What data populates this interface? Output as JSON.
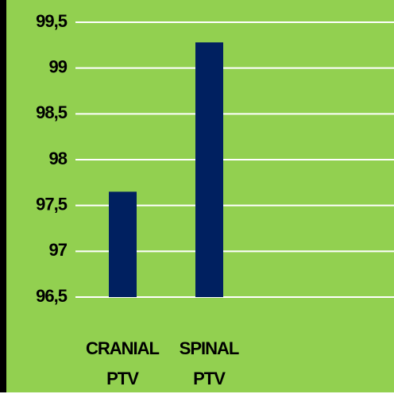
{
  "chart_data": {
    "type": "bar",
    "categories": [
      "CRANIAL PTV",
      "SPINAL PTV"
    ],
    "values": [
      97.65,
      99.28
    ],
    "color": "#002060",
    "background": "#92d050",
    "ylim": [
      96.5,
      99.5
    ],
    "yticks": [
      {
        "value": 96.5,
        "label": "96,5"
      },
      97,
      {
        "value": 97.5,
        "label": "97,5"
      },
      98,
      {
        "value": 98.5,
        "label": "98,5"
      },
      99,
      {
        "value": 99.5,
        "label": "99,5"
      }
    ],
    "grid": true
  }
}
